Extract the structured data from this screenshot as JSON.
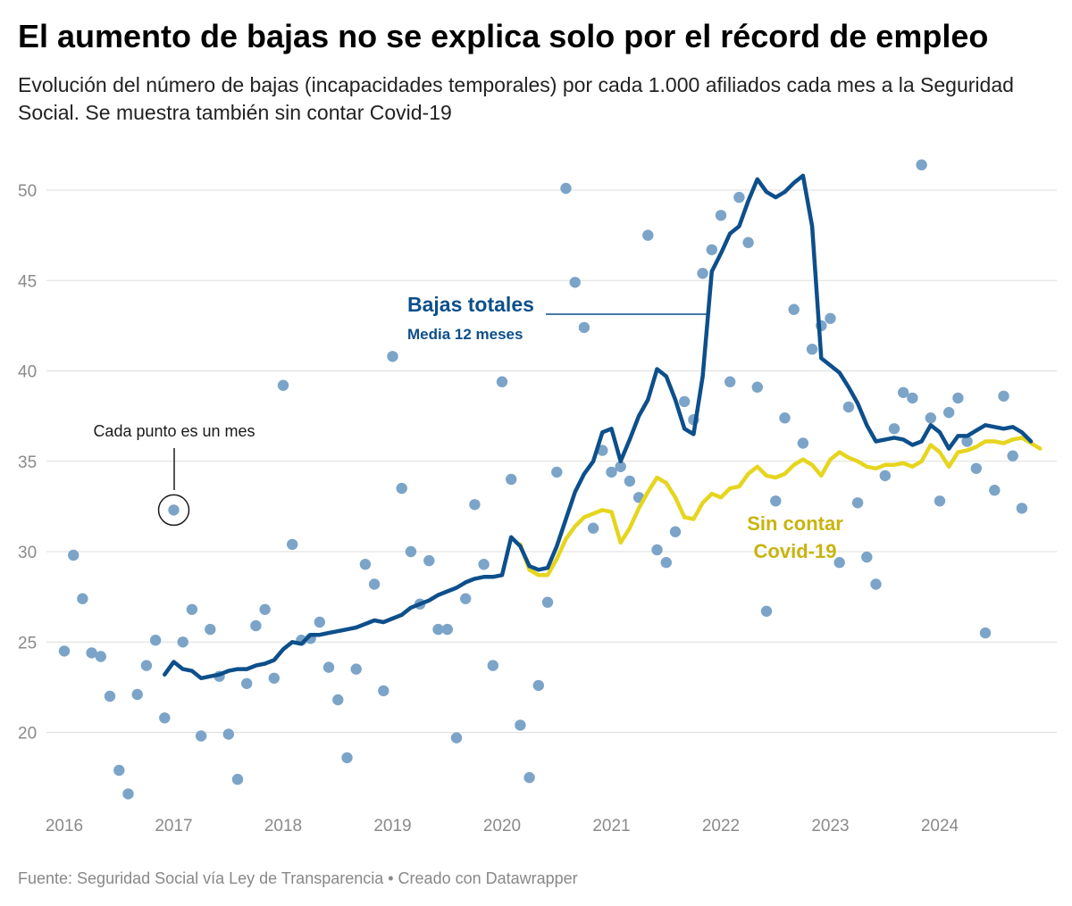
{
  "title": "El aumento de bajas no se explica solo por el récord de empleo",
  "subtitle": "Evolución del número de bajas (incapacidades temporales) por cada 1.000 afiliados cada mes a la Seguridad Social. Se muestra también sin contar Covid-19",
  "footer": "Fuente: Seguridad Social vía Ley de Transparencia • Creado con Datawrapper",
  "colors": {
    "dots": "#7ba4c8",
    "total_line": "#0d4f8b",
    "sin_covid_line": "#e6d51e",
    "grid": "#dddddd",
    "tick_text": "#8a8a8a"
  },
  "chart_data": {
    "type": "scatter",
    "title": "El aumento de bajas no se explica solo por el récord de empleo",
    "xlabel": "",
    "ylabel": "",
    "xlim": [
      2016.0,
      2025.0
    ],
    "ylim": [
      16,
      52
    ],
    "x_ticks": [
      2016,
      2017,
      2018,
      2019,
      2020,
      2021,
      2022,
      2023,
      2024
    ],
    "y_ticks": [
      20,
      25,
      30,
      35,
      40,
      45,
      50
    ],
    "grid": true,
    "annotations": {
      "total_title": "Bajas totales",
      "total_sub": "Media 12 meses",
      "sin_covid_line1": "Sin contar",
      "sin_covid_line2": "Covid-19",
      "dot_note": "Cada punto es un mes",
      "dot_note_year": 2017,
      "dot_note_value": 32.3
    },
    "series": [
      {
        "name": "Bajas mensuales",
        "kind": "points",
        "start": [
          2016,
          1
        ],
        "values": [
          24.5,
          29.8,
          27.4,
          24.4,
          24.2,
          22.0,
          17.9,
          16.6,
          22.1,
          23.7,
          25.1,
          20.8,
          32.3,
          25.0,
          26.8,
          19.8,
          25.7,
          23.1,
          19.9,
          17.4,
          22.7,
          25.9,
          26.8,
          23.0,
          39.2,
          30.4,
          25.1,
          25.2,
          26.1,
          23.6,
          21.8,
          18.6,
          23.5,
          29.3,
          28.2,
          22.3,
          40.8,
          33.5,
          30.0,
          27.1,
          29.5,
          25.7,
          25.7,
          19.7,
          27.4,
          32.6,
          29.3,
          23.7,
          39.4,
          34.0,
          20.4,
          17.5,
          22.6,
          27.2,
          34.4,
          50.1,
          44.9,
          42.4,
          31.3,
          35.6,
          34.4,
          34.7,
          33.9,
          33.0,
          47.5,
          30.1,
          29.4,
          31.1,
          38.3,
          37.3,
          45.4,
          46.7,
          48.6,
          39.4,
          49.6,
          47.1,
          39.1,
          26.7,
          32.8,
          37.4,
          43.4,
          36.0,
          41.2,
          42.5,
          42.9,
          29.4,
          38.0,
          32.7,
          29.7,
          28.2,
          34.2,
          36.8,
          38.8,
          38.5,
          51.4,
          37.4,
          32.8,
          37.7,
          38.5,
          36.1,
          34.6,
          25.5,
          33.4,
          38.6,
          35.3,
          32.4
        ]
      },
      {
        "name": "Bajas totales (media 12 meses)",
        "kind": "line",
        "start": [
          2016,
          12
        ],
        "values": [
          23.2,
          23.9,
          23.5,
          23.4,
          23.0,
          23.1,
          23.2,
          23.4,
          23.5,
          23.5,
          23.7,
          23.8,
          24.0,
          24.6,
          25.0,
          24.9,
          25.4,
          25.4,
          25.5,
          25.6,
          25.7,
          25.8,
          26.0,
          26.2,
          26.1,
          26.3,
          26.5,
          26.9,
          27.1,
          27.3,
          27.6,
          27.8,
          28.0,
          28.3,
          28.5,
          28.6,
          28.6,
          28.7,
          30.8,
          30.3,
          29.2,
          29.0,
          29.1,
          30.3,
          31.8,
          33.3,
          34.3,
          35.0,
          36.6,
          36.8,
          35.0,
          36.2,
          37.5,
          38.4,
          40.1,
          39.7,
          38.4,
          36.8,
          36.5,
          39.7,
          45.5,
          46.5,
          47.6,
          48.0,
          49.4,
          50.6,
          49.9,
          49.6,
          49.9,
          50.4,
          50.8,
          48.0,
          40.7,
          40.3,
          39.9,
          39.1,
          38.2,
          37.0,
          36.1,
          36.2,
          36.3,
          36.2,
          35.9,
          36.1,
          37.0,
          36.6,
          35.7,
          36.4,
          36.4,
          36.7,
          37.0,
          36.9,
          36.8,
          36.9,
          36.6,
          36.1
        ]
      },
      {
        "name": "Sin contar Covid-19 (media 12 meses)",
        "kind": "line",
        "start": [
          2020,
          3
        ],
        "values": [
          30.4,
          29.0,
          28.7,
          28.7,
          29.6,
          30.7,
          31.4,
          31.9,
          32.1,
          32.3,
          32.2,
          30.5,
          31.3,
          32.4,
          33.3,
          34.1,
          33.8,
          33.0,
          31.9,
          31.8,
          32.7,
          33.2,
          33.0,
          33.5,
          33.6,
          34.3,
          34.7,
          34.2,
          34.1,
          34.3,
          34.8,
          35.1,
          34.8,
          34.2,
          35.1,
          35.5,
          35.2,
          35.0,
          34.7,
          34.6,
          34.8,
          34.8,
          34.9,
          34.7,
          35.0,
          35.9,
          35.5,
          34.7,
          35.5,
          35.6,
          35.8,
          36.1,
          36.1,
          36.0,
          36.2,
          36.3,
          36.0,
          35.7
        ]
      }
    ]
  }
}
